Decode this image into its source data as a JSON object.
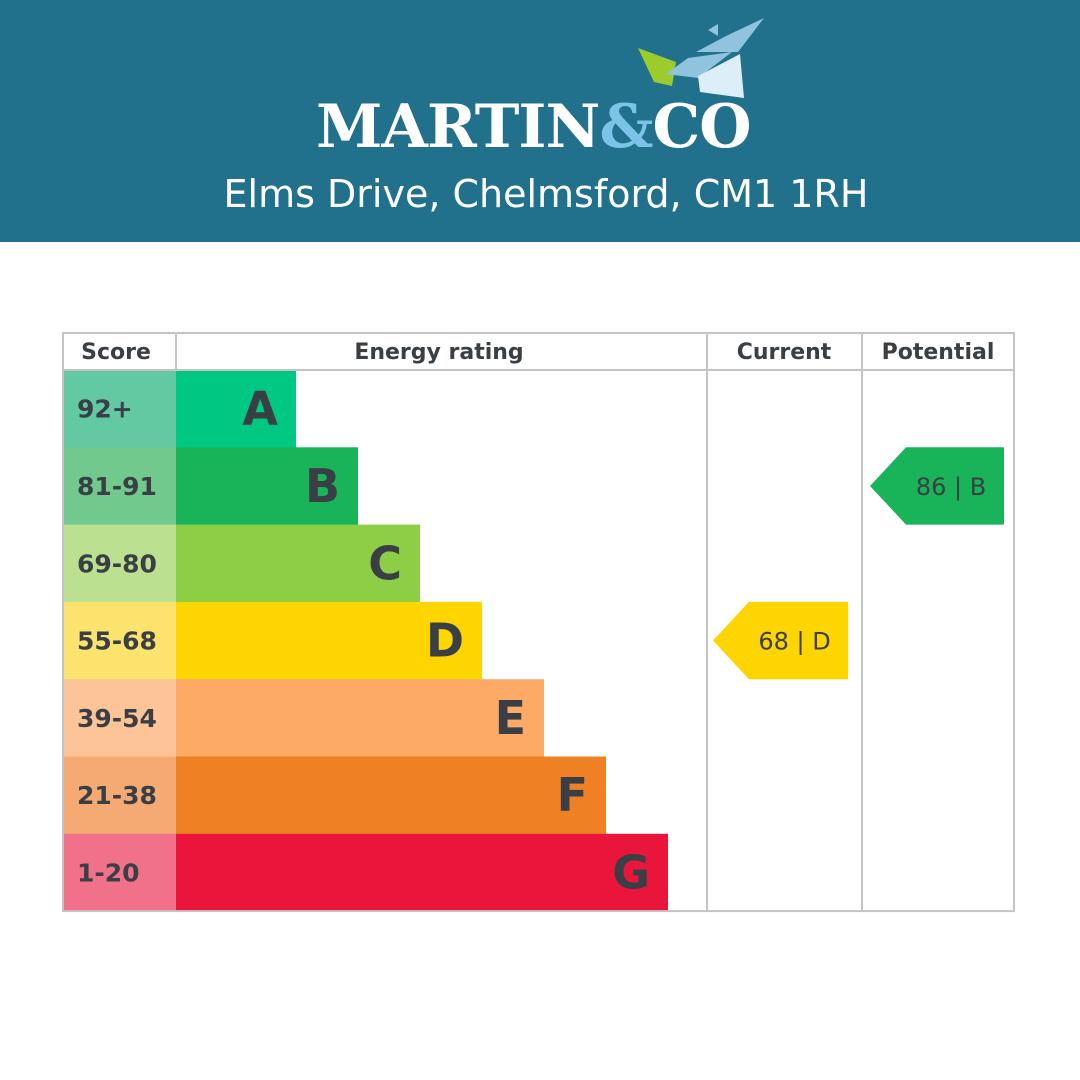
{
  "header": {
    "logo_left": "MARTIN",
    "logo_amp": "&",
    "logo_right": "CO",
    "address": "Elms Drive, Chelmsford, CM1 1RH"
  },
  "colors": {
    "header_bg": "#21708c",
    "logo_amp": "#7cc3e8"
  },
  "chart_data": {
    "type": "table",
    "columns": [
      "Score",
      "Energy rating",
      "Current",
      "Potential"
    ],
    "bands": [
      {
        "score": "92+",
        "letter": "A",
        "min": 92,
        "max": 100,
        "color": "#00c781",
        "score_color": "#62c9a2"
      },
      {
        "score": "81-91",
        "letter": "B",
        "min": 81,
        "max": 91,
        "color": "#19b459",
        "score_color": "#72c98e"
      },
      {
        "score": "69-80",
        "letter": "C",
        "min": 69,
        "max": 80,
        "color": "#8dce46",
        "score_color": "#bbe08f"
      },
      {
        "score": "55-68",
        "letter": "D",
        "min": 55,
        "max": 68,
        "color": "#ffd500",
        "score_color": "#fbe36e"
      },
      {
        "score": "39-54",
        "letter": "E",
        "min": 39,
        "max": 54,
        "color": "#fcaa65",
        "score_color": "#fdc597"
      },
      {
        "score": "21-38",
        "letter": "F",
        "min": 21,
        "max": 38,
        "color": "#ef8023",
        "score_color": "#f4aa72"
      },
      {
        "score": "1-20",
        "letter": "G",
        "min": 1,
        "max": 20,
        "color": "#e9153b",
        "score_color": "#f1718a"
      }
    ],
    "current": {
      "value": 68,
      "band": "D",
      "label": "68 | D"
    },
    "potential": {
      "value": 86,
      "band": "B",
      "label": "86 | B"
    }
  }
}
